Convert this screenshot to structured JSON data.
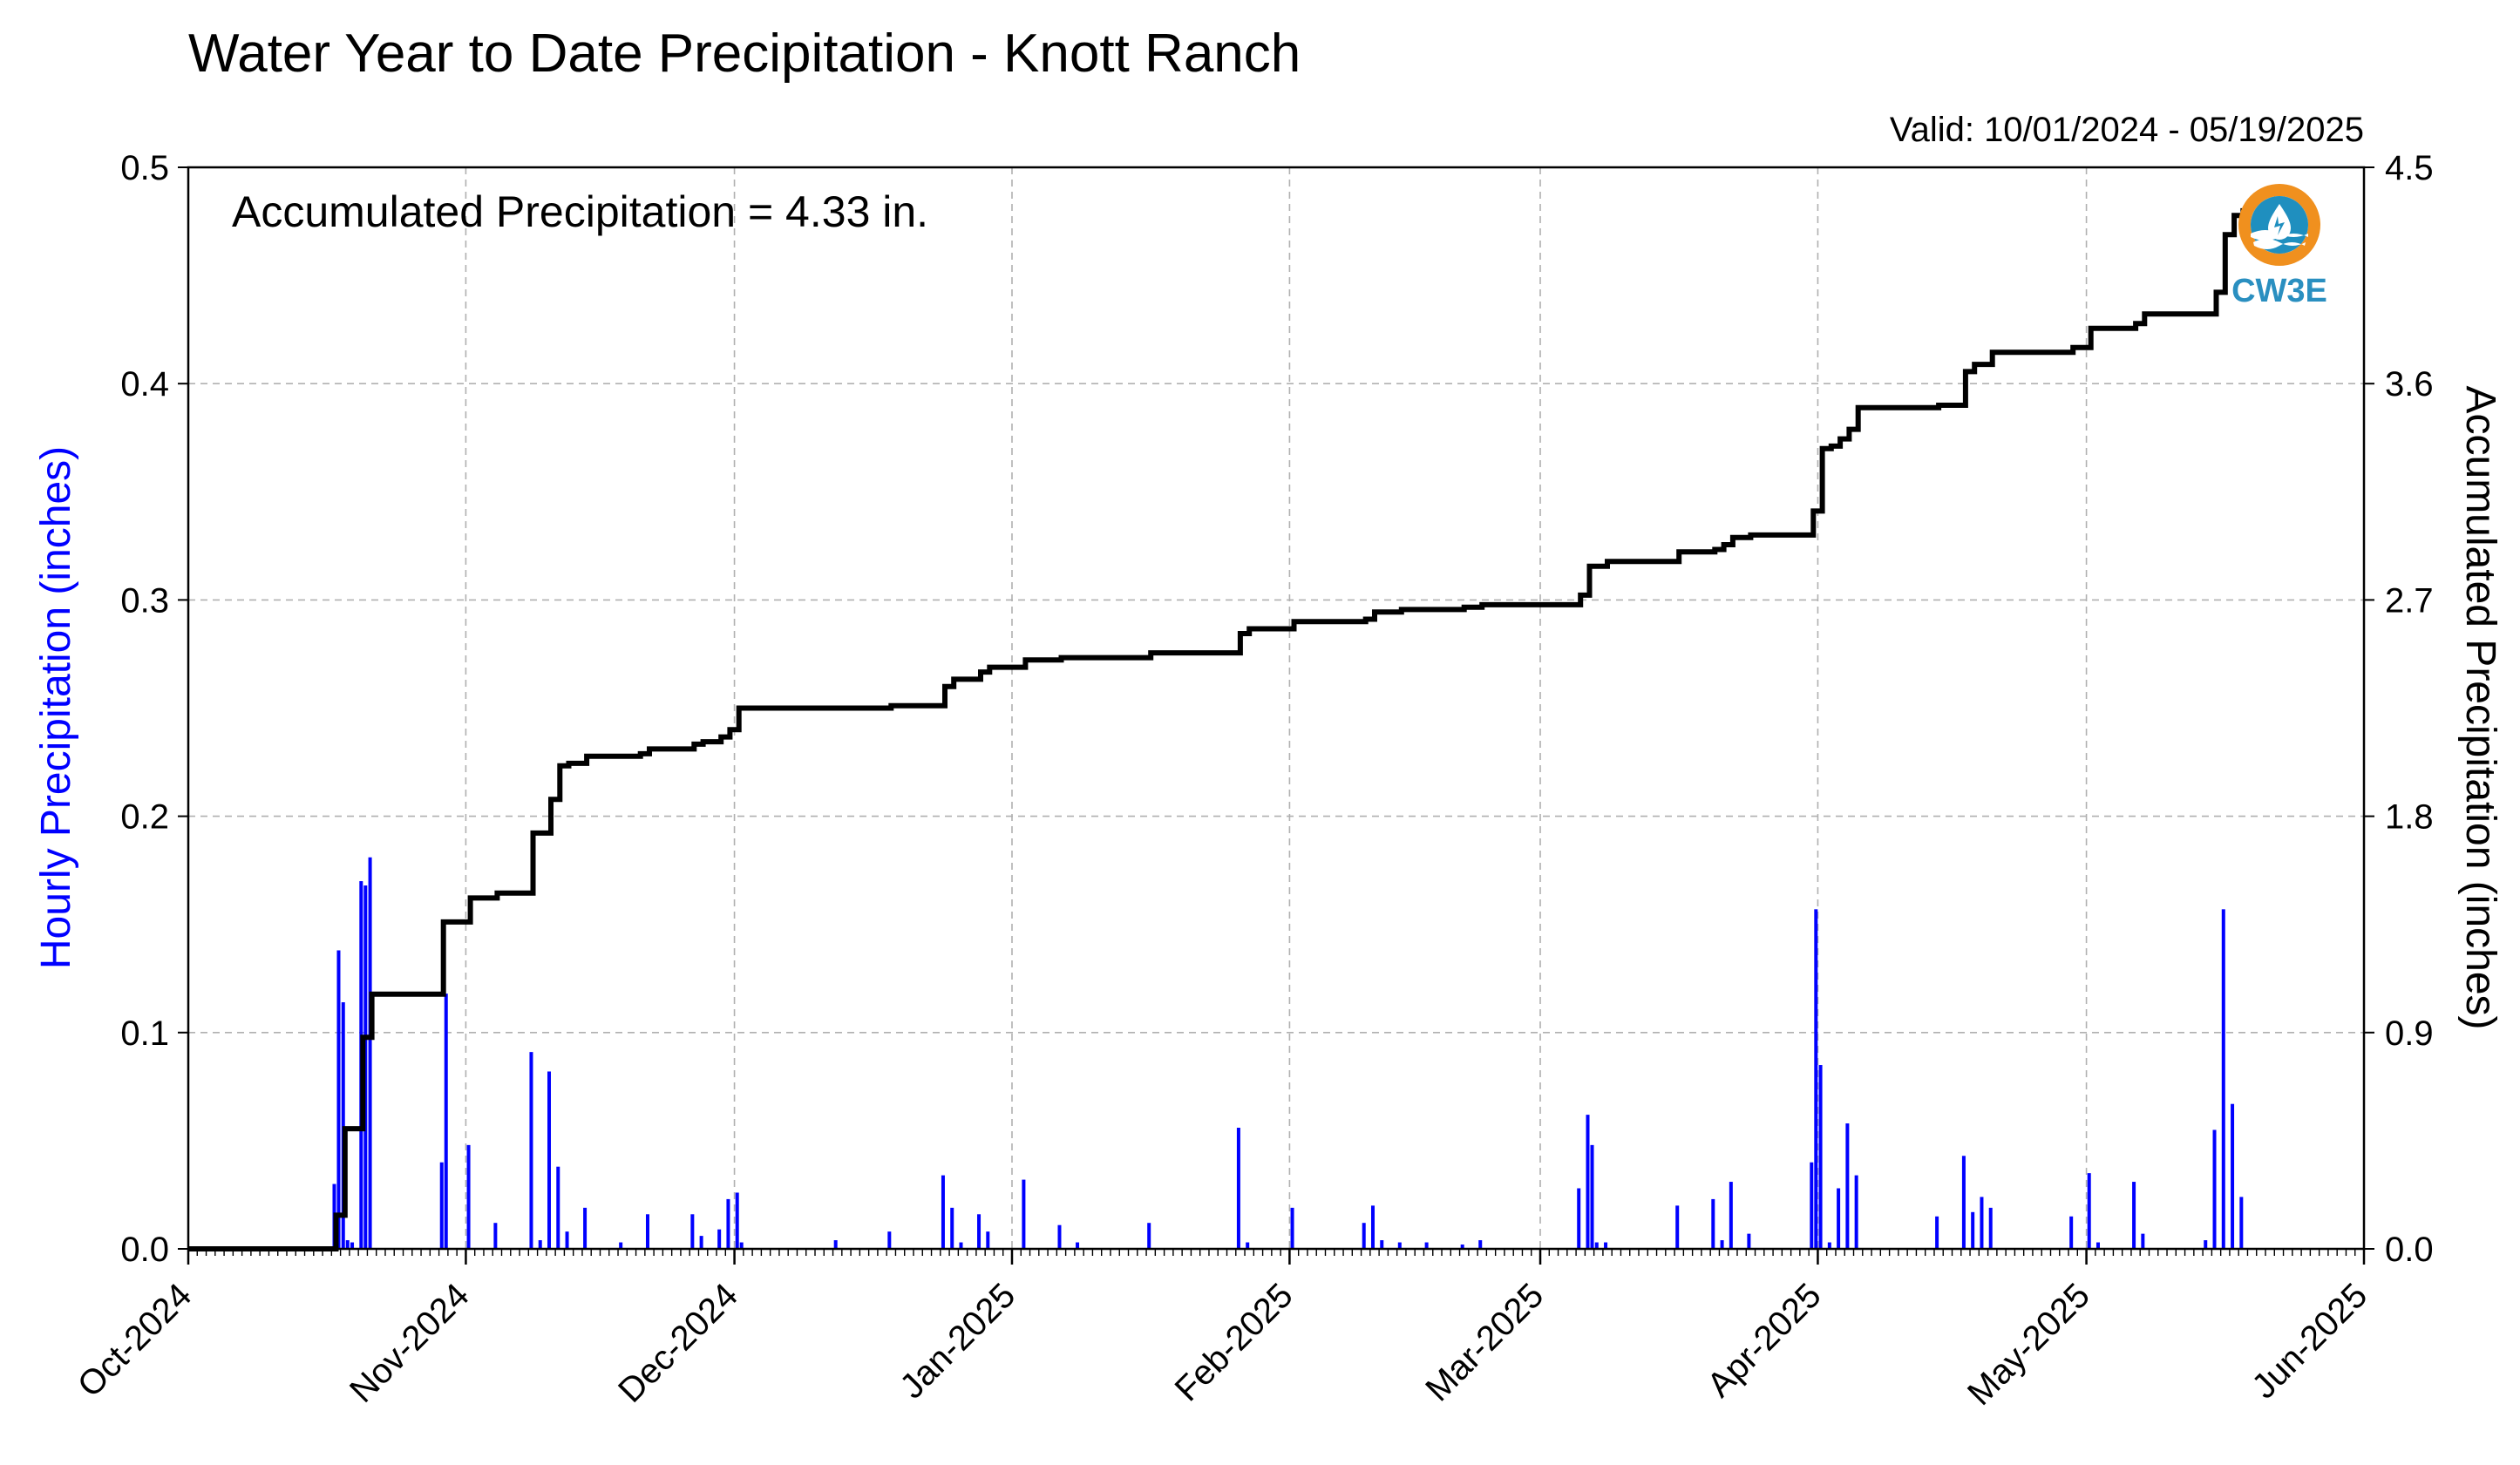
{
  "chart_data": {
    "type": "bar",
    "title": "Water Year to Date Precipitation - Knott Ranch",
    "valid_text": "Valid: 10/01/2024 - 05/19/2025",
    "annotation": "Accumulated Precipitation = 4.33 in.",
    "ylabel_left": "Hourly Precipitation (inches)",
    "ylabel_right": "Accumulated Precipitation (inches)",
    "xlim": [
      "2024-10-01",
      "2025-06-01"
    ],
    "ylim_left": [
      0,
      0.5
    ],
    "ylim_right": [
      0,
      4.5
    ],
    "left_ticks": [
      "0.0",
      "0.1",
      "0.2",
      "0.3",
      "0.4",
      "0.5"
    ],
    "right_ticks": [
      "0.0",
      "0.9",
      "1.8",
      "2.7",
      "3.6",
      "4.5"
    ],
    "x_ticks": [
      {
        "date": "2024-10-01",
        "label": "Oct-2024"
      },
      {
        "date": "2024-11-01",
        "label": "Nov-2024"
      },
      {
        "date": "2024-12-01",
        "label": "Dec-2024"
      },
      {
        "date": "2025-01-01",
        "label": "Jan-2025"
      },
      {
        "date": "2025-02-01",
        "label": "Feb-2025"
      },
      {
        "date": "2025-03-01",
        "label": "Mar-2025"
      },
      {
        "date": "2025-04-01",
        "label": "Apr-2025"
      },
      {
        "date": "2025-05-01",
        "label": "May-2025"
      },
      {
        "date": "2025-06-01",
        "label": "Jun-2025"
      }
    ],
    "grid": true,
    "colors": {
      "hourly": "#0000ff",
      "accumulated": "#000000",
      "grid": "#b0b0b0"
    },
    "series": [
      {
        "name": "Hourly Precipitation",
        "type": "bar",
        "axis": "left",
        "points": [
          {
            "x": "2024-10-17",
            "y": 0.03
          },
          {
            "x": "2024-10-17",
            "y": 0.138
          },
          {
            "x": "2024-10-18",
            "y": 0.114
          },
          {
            "x": "2024-10-18",
            "y": 0.004
          },
          {
            "x": "2024-10-19",
            "y": 0.003
          },
          {
            "x": "2024-10-20",
            "y": 0.17
          },
          {
            "x": "2024-10-20",
            "y": 0.168
          },
          {
            "x": "2024-10-21",
            "y": 0.181
          },
          {
            "x": "2024-10-29",
            "y": 0.04
          },
          {
            "x": "2024-10-29",
            "y": 0.118
          },
          {
            "x": "2024-11-01",
            "y": 0.048
          },
          {
            "x": "2024-11-04",
            "y": 0.012
          },
          {
            "x": "2024-11-08",
            "y": 0.091
          },
          {
            "x": "2024-11-09",
            "y": 0.004
          },
          {
            "x": "2024-11-10",
            "y": 0.082
          },
          {
            "x": "2024-11-11",
            "y": 0.038
          },
          {
            "x": "2024-11-12",
            "y": 0.008
          },
          {
            "x": "2024-11-14",
            "y": 0.019
          },
          {
            "x": "2024-11-18",
            "y": 0.003
          },
          {
            "x": "2024-11-21",
            "y": 0.016
          },
          {
            "x": "2024-11-26",
            "y": 0.016
          },
          {
            "x": "2024-11-27",
            "y": 0.006
          },
          {
            "x": "2024-11-29",
            "y": 0.009
          },
          {
            "x": "2024-11-30",
            "y": 0.023
          },
          {
            "x": "2024-12-01",
            "y": 0.026
          },
          {
            "x": "2024-12-01",
            "y": 0.003
          },
          {
            "x": "2024-12-12",
            "y": 0.004
          },
          {
            "x": "2024-12-18",
            "y": 0.008
          },
          {
            "x": "2024-12-24",
            "y": 0.034
          },
          {
            "x": "2024-12-25",
            "y": 0.019
          },
          {
            "x": "2024-12-26",
            "y": 0.003
          },
          {
            "x": "2024-12-28",
            "y": 0.016
          },
          {
            "x": "2024-12-29",
            "y": 0.008
          },
          {
            "x": "2025-01-02",
            "y": 0.032
          },
          {
            "x": "2025-01-06",
            "y": 0.011
          },
          {
            "x": "2025-01-08",
            "y": 0.003
          },
          {
            "x": "2025-01-16",
            "y": 0.012
          },
          {
            "x": "2025-01-26",
            "y": 0.056
          },
          {
            "x": "2025-01-27",
            "y": 0.003
          },
          {
            "x": "2025-02-01",
            "y": 0.019
          },
          {
            "x": "2025-02-09",
            "y": 0.012
          },
          {
            "x": "2025-02-10",
            "y": 0.02
          },
          {
            "x": "2025-02-11",
            "y": 0.004
          },
          {
            "x": "2025-02-13",
            "y": 0.003
          },
          {
            "x": "2025-02-16",
            "y": 0.003
          },
          {
            "x": "2025-02-20",
            "y": 0.002
          },
          {
            "x": "2025-02-22",
            "y": 0.004
          },
          {
            "x": "2025-03-05",
            "y": 0.028
          },
          {
            "x": "2025-03-06",
            "y": 0.062
          },
          {
            "x": "2025-03-06",
            "y": 0.048
          },
          {
            "x": "2025-03-07",
            "y": 0.003
          },
          {
            "x": "2025-03-08",
            "y": 0.003
          },
          {
            "x": "2025-03-16",
            "y": 0.02
          },
          {
            "x": "2025-03-20",
            "y": 0.023
          },
          {
            "x": "2025-03-21",
            "y": 0.004
          },
          {
            "x": "2025-03-22",
            "y": 0.031
          },
          {
            "x": "2025-03-24",
            "y": 0.007
          },
          {
            "x": "2025-03-31",
            "y": 0.04
          },
          {
            "x": "2025-03-31",
            "y": 0.157
          },
          {
            "x": "2025-04-01",
            "y": 0.085
          },
          {
            "x": "2025-04-02",
            "y": 0.003
          },
          {
            "x": "2025-04-03",
            "y": 0.028
          },
          {
            "x": "2025-04-04",
            "y": 0.058
          },
          {
            "x": "2025-04-05",
            "y": 0.034
          },
          {
            "x": "2025-04-14",
            "y": 0.015
          },
          {
            "x": "2025-04-17",
            "y": 0.043
          },
          {
            "x": "2025-04-18",
            "y": 0.017
          },
          {
            "x": "2025-04-19",
            "y": 0.024
          },
          {
            "x": "2025-04-20",
            "y": 0.019
          },
          {
            "x": "2025-04-29",
            "y": 0.015
          },
          {
            "x": "2025-05-01",
            "y": 0.035
          },
          {
            "x": "2025-05-02",
            "y": 0.003
          },
          {
            "x": "2025-05-06",
            "y": 0.031
          },
          {
            "x": "2025-05-07",
            "y": 0.007
          },
          {
            "x": "2025-05-14",
            "y": 0.004
          },
          {
            "x": "2025-05-15",
            "y": 0.055
          },
          {
            "x": "2025-05-16",
            "y": 0.157
          },
          {
            "x": "2025-05-17",
            "y": 0.067
          },
          {
            "x": "2025-05-18",
            "y": 0.024
          }
        ]
      },
      {
        "name": "Accumulated Precipitation",
        "type": "step",
        "axis": "right",
        "points": [
          {
            "x": "2024-10-01",
            "y": 0.0
          },
          {
            "x": "2024-10-17",
            "y": 0.0
          },
          {
            "x": "2024-10-17",
            "y": 0.14
          },
          {
            "x": "2024-10-18",
            "y": 0.38
          },
          {
            "x": "2024-10-18",
            "y": 0.5
          },
          {
            "x": "2024-10-20",
            "y": 0.52
          },
          {
            "x": "2024-10-20",
            "y": 0.88
          },
          {
            "x": "2024-10-21",
            "y": 1.06
          },
          {
            "x": "2024-10-29",
            "y": 1.06
          },
          {
            "x": "2024-10-29",
            "y": 1.36
          },
          {
            "x": "2024-11-01",
            "y": 1.46
          },
          {
            "x": "2024-11-04",
            "y": 1.48
          },
          {
            "x": "2024-11-08",
            "y": 1.48
          },
          {
            "x": "2024-11-08",
            "y": 1.73
          },
          {
            "x": "2024-11-10",
            "y": 1.74
          },
          {
            "x": "2024-11-10",
            "y": 1.87
          },
          {
            "x": "2024-11-11",
            "y": 2.01
          },
          {
            "x": "2024-11-12",
            "y": 2.02
          },
          {
            "x": "2024-11-14",
            "y": 2.05
          },
          {
            "x": "2024-11-20",
            "y": 2.06
          },
          {
            "x": "2024-11-21",
            "y": 2.08
          },
          {
            "x": "2024-11-26",
            "y": 2.1
          },
          {
            "x": "2024-11-27",
            "y": 2.11
          },
          {
            "x": "2024-11-29",
            "y": 2.13
          },
          {
            "x": "2024-11-30",
            "y": 2.16
          },
          {
            "x": "2024-12-01",
            "y": 2.25
          },
          {
            "x": "2024-12-12",
            "y": 2.25
          },
          {
            "x": "2024-12-18",
            "y": 2.26
          },
          {
            "x": "2024-12-24",
            "y": 2.27
          },
          {
            "x": "2024-12-24",
            "y": 2.34
          },
          {
            "x": "2024-12-25",
            "y": 2.37
          },
          {
            "x": "2024-12-28",
            "y": 2.4
          },
          {
            "x": "2024-12-29",
            "y": 2.42
          },
          {
            "x": "2025-01-02",
            "y": 2.45
          },
          {
            "x": "2025-01-06",
            "y": 2.46
          },
          {
            "x": "2025-01-16",
            "y": 2.48
          },
          {
            "x": "2025-01-26",
            "y": 2.48
          },
          {
            "x": "2025-01-26",
            "y": 2.56
          },
          {
            "x": "2025-01-27",
            "y": 2.58
          },
          {
            "x": "2025-02-01",
            "y": 2.61
          },
          {
            "x": "2025-02-09",
            "y": 2.62
          },
          {
            "x": "2025-02-10",
            "y": 2.65
          },
          {
            "x": "2025-02-13",
            "y": 2.66
          },
          {
            "x": "2025-02-20",
            "y": 2.67
          },
          {
            "x": "2025-02-22",
            "y": 2.68
          },
          {
            "x": "2025-03-05",
            "y": 2.68
          },
          {
            "x": "2025-03-05",
            "y": 2.72
          },
          {
            "x": "2025-03-06",
            "y": 2.84
          },
          {
            "x": "2025-03-08",
            "y": 2.86
          },
          {
            "x": "2025-03-16",
            "y": 2.86
          },
          {
            "x": "2025-03-16",
            "y": 2.9
          },
          {
            "x": "2025-03-20",
            "y": 2.91
          },
          {
            "x": "2025-03-21",
            "y": 2.93
          },
          {
            "x": "2025-03-22",
            "y": 2.96
          },
          {
            "x": "2025-03-24",
            "y": 2.97
          },
          {
            "x": "2025-03-31",
            "y": 2.97
          },
          {
            "x": "2025-03-31",
            "y": 3.07
          },
          {
            "x": "2025-04-01",
            "y": 3.33
          },
          {
            "x": "2025-04-02",
            "y": 3.34
          },
          {
            "x": "2025-04-03",
            "y": 3.37
          },
          {
            "x": "2025-04-04",
            "y": 3.41
          },
          {
            "x": "2025-04-05",
            "y": 3.5
          },
          {
            "x": "2025-04-14",
            "y": 3.51
          },
          {
            "x": "2025-04-17",
            "y": 3.53
          },
          {
            "x": "2025-04-17",
            "y": 3.65
          },
          {
            "x": "2025-04-18",
            "y": 3.68
          },
          {
            "x": "2025-04-20",
            "y": 3.73
          },
          {
            "x": "2025-04-29",
            "y": 3.75
          },
          {
            "x": "2025-05-01",
            "y": 3.83
          },
          {
            "x": "2025-05-06",
            "y": 3.85
          },
          {
            "x": "2025-05-07",
            "y": 3.89
          },
          {
            "x": "2025-05-15",
            "y": 3.89
          },
          {
            "x": "2025-05-15",
            "y": 3.98
          },
          {
            "x": "2025-05-16",
            "y": 4.22
          },
          {
            "x": "2025-05-17",
            "y": 4.3
          },
          {
            "x": "2025-05-18",
            "y": 4.33
          }
        ]
      }
    ]
  },
  "logo": {
    "text": "CW3E",
    "ring_color": "#f0901e",
    "body_color": "#1f8fbf"
  }
}
